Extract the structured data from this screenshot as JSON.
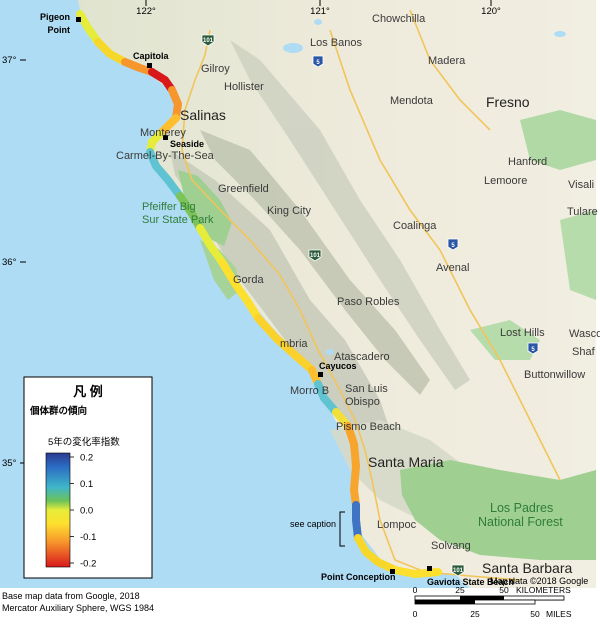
{
  "map": {
    "graticule": {
      "lon_labels": [
        "122°",
        "121°",
        "120°"
      ],
      "lat_labels": [
        "37°",
        "36°",
        "35°"
      ]
    },
    "sites": {
      "pigeon_point": "Pigeon\nPoint",
      "capitola": "Capitola",
      "seaside": "Seaside",
      "cayucos": "Cayucos",
      "point_conception": "Point Conception",
      "gaviota": "Gaviota State Beach"
    },
    "towns": {
      "chowchilla": "Chowchilla",
      "los_banos": "Los Banos",
      "madera": "Madera",
      "gilroy": "Gilroy",
      "hollister": "Hollister",
      "mendota": "Mendota",
      "fresno": "Fresno",
      "salinas": "Salinas",
      "monterey": "Monterey",
      "carmel": "Carmel-By-The-Sea",
      "hanford": "Hanford",
      "visalia": "Visali",
      "greenfield": "Greenfield",
      "lemoore": "Lemoore",
      "tulare": "Tulare",
      "king_city": "King City",
      "coalinga": "Coalinga",
      "avenal": "Avenal",
      "paso_robles": "Paso Robles",
      "lost_hills": "Lost Hills",
      "wasco": "Wasco",
      "shafter": "Shaf",
      "atascadero": "Atascadero",
      "morro_bay": "Morro B",
      "san_luis_obispo_1": "San Luis",
      "san_luis_obispo_2": "Obispo",
      "buttonwillow": "Buttonwillow",
      "pismo_beach": "Pismo Beach",
      "santa_maria": "Santa Maria",
      "lompoc": "Lompoc",
      "solvang": "Solvang",
      "santa_barbara": "Santa Barbara",
      "cambria": "mbria",
      "gorda": "Gorda"
    },
    "parks": {
      "pfeiffer_1": "Pfeiffer Big",
      "pfeiffer_2": "Sur State Park",
      "los_padres_1": "Los Padres",
      "los_padres_2": "National Forest"
    },
    "highways": {
      "us101_a": "101",
      "us101_b": "101",
      "us101_c": "101",
      "i5_a": "5",
      "i5_b": "5",
      "i5_c": "5"
    },
    "annotation": "see caption",
    "map_credit_in_frame": "Map data ©2018 Google",
    "scale_bar": {
      "km_ticks": [
        "0",
        "25",
        "50"
      ],
      "km_label": "KILOMETERS",
      "mi_ticks": [
        "0",
        "25",
        "50"
      ],
      "mi_label": "MILES"
    }
  },
  "legend": {
    "title": "凡 例",
    "subtitle": "個体群の傾向",
    "colorbar_label": "5年の変化率指数",
    "ticks": [
      "0.2",
      "0.1",
      "0.0",
      "-0.1",
      "-0.2"
    ],
    "tick_values": [
      0.2,
      0.1,
      0.0,
      -0.1,
      -0.2
    ],
    "range": [
      -0.2,
      0.2
    ],
    "colors": [
      "#d7191c",
      "#fdae61",
      "#ffff33",
      "#66c25a",
      "#2b83ba",
      "#2c3a8f"
    ]
  },
  "footer": {
    "credit_line1": "Base map data from Google, 2018",
    "credit_line2": "Mercator Auxiliary Sphere, WGS 1984"
  }
}
